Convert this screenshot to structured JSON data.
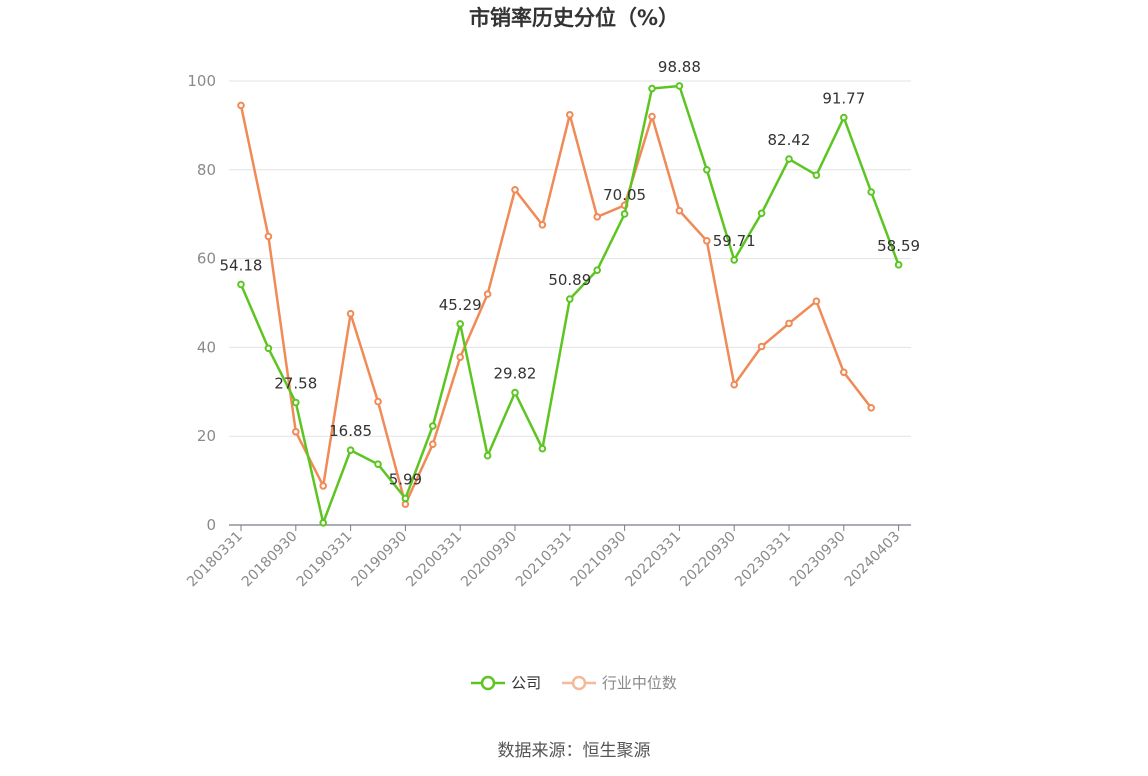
{
  "chart_data": {
    "type": "line",
    "title": "市销率历史分位（%）",
    "xlabel": "",
    "ylabel": "",
    "ylim": [
      0,
      100
    ],
    "yticks": [
      0,
      20,
      40,
      60,
      80,
      100
    ],
    "grid": true,
    "legend_position": "bottom",
    "x": [
      "20180331",
      "20180630",
      "20180930",
      "20181231",
      "20190331",
      "20190630",
      "20190930",
      "20191231",
      "20200331",
      "20200630",
      "20200930",
      "20201231",
      "20210331",
      "20210630",
      "20210930",
      "20211231",
      "20220331",
      "20220630",
      "20220930",
      "20221231",
      "20230331",
      "20230630",
      "20230930",
      "20231231",
      "20240403"
    ],
    "xtick_labels": [
      "20180331",
      "20180930",
      "20190331",
      "20190930",
      "20200331",
      "20200930",
      "20210331",
      "20210930",
      "20220331",
      "20220930",
      "20230331",
      "20230930",
      "20240403"
    ],
    "series": [
      {
        "name": "公司",
        "color": "#5dc521",
        "values": [
          54.18,
          39.8,
          27.58,
          0.5,
          16.85,
          13.7,
          5.99,
          22.3,
          45.29,
          15.6,
          29.82,
          17.2,
          50.89,
          57.4,
          70.05,
          98.3,
          98.88,
          80.0,
          59.71,
          70.2,
          82.42,
          78.8,
          91.77,
          75.0,
          58.59
        ],
        "labels": {
          "0": "54.18",
          "2": "27.58",
          "4": "16.85",
          "6": "5.99",
          "8": "45.29",
          "10": "29.82",
          "12": "50.89",
          "14": "70.05",
          "16": "98.88",
          "18": "59.71",
          "20": "82.42",
          "22": "91.77",
          "24": "58.59"
        }
      },
      {
        "name": "行业中位数",
        "color": "#f08a57",
        "values": [
          94.5,
          65.0,
          21.0,
          8.8,
          47.6,
          27.8,
          4.7,
          18.2,
          37.8,
          52.0,
          75.5,
          67.6,
          92.4,
          69.4,
          72.0,
          92.0,
          70.8,
          64.0,
          31.6,
          40.2,
          45.4,
          50.4,
          34.4,
          26.4,
          null
        ]
      }
    ]
  },
  "legend": {
    "company": "公司",
    "industry": "行业中位数"
  },
  "source": "数据来源：恒生聚源"
}
